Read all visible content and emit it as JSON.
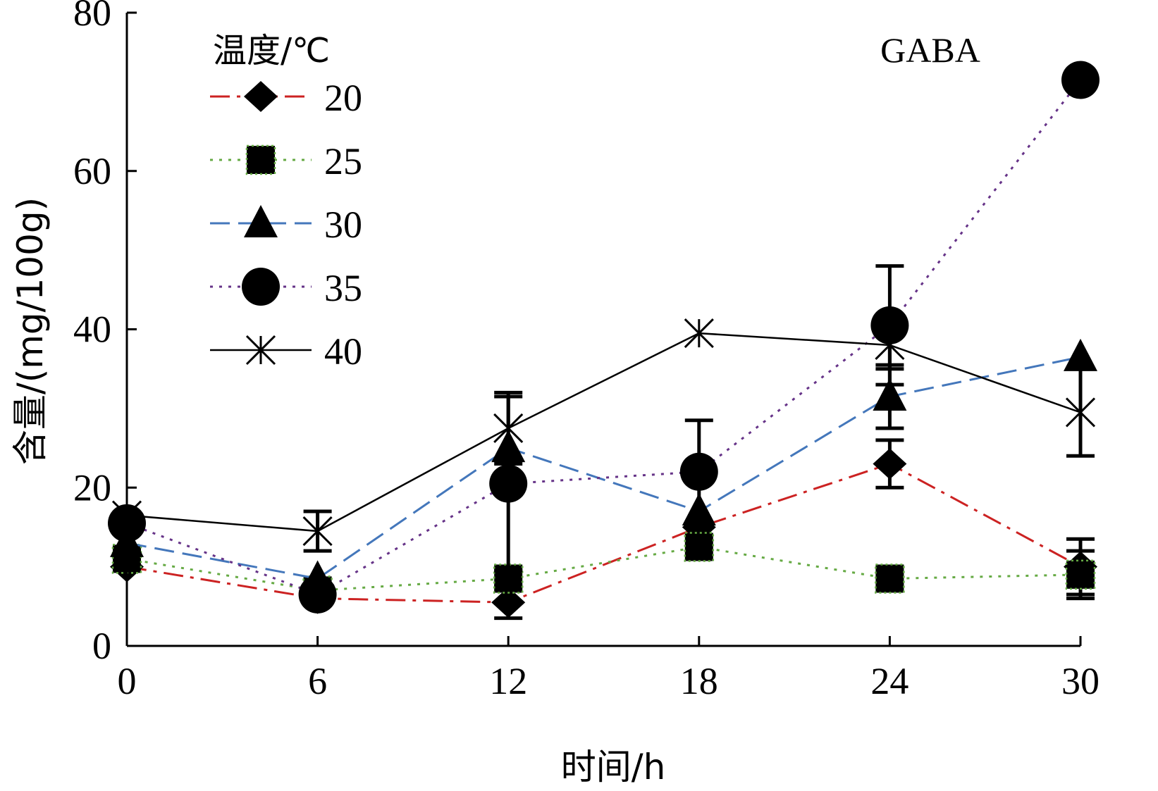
{
  "chart_data": {
    "type": "line",
    "title": "",
    "annotation": "GABA",
    "xlabel": "时间/h",
    "ylabel": "含量/(mg/100g)",
    "x": [
      0,
      6,
      12,
      18,
      24,
      30
    ],
    "x_tick_labels": [
      "0",
      "6",
      "12",
      "18",
      "24",
      "30"
    ],
    "xlim": [
      0,
      30
    ],
    "ylim": [
      0,
      80
    ],
    "y_ticks": [
      0,
      20,
      40,
      60,
      80
    ],
    "y_tick_labels": [
      "0",
      "20",
      "40",
      "60",
      "80"
    ],
    "grid": false,
    "legend": {
      "title": "温度/℃",
      "placement": "top-left"
    },
    "series": [
      {
        "name": "20",
        "marker": "diamond",
        "line": "dashdot",
        "color": "#cc2222",
        "values": [
          10,
          6,
          5.5,
          15,
          23,
          10
        ],
        "errors": [
          0,
          0,
          2,
          0,
          3,
          3.5
        ]
      },
      {
        "name": "25",
        "marker": "square",
        "line": "dotted",
        "color": "#66aa44",
        "values": [
          11,
          7,
          8.5,
          12.5,
          8.5,
          9
        ],
        "errors": [
          0,
          0,
          0,
          0,
          0,
          3
        ]
      },
      {
        "name": "30",
        "marker": "triangle",
        "line": "dashed",
        "color": "#4477bb",
        "values": [
          13,
          8.5,
          25,
          17,
          31.5,
          36.5
        ],
        "errors": [
          0,
          0,
          0,
          0,
          4,
          0
        ]
      },
      {
        "name": "35",
        "marker": "circle",
        "line": "dotted",
        "color": "#663388",
        "values": [
          15.5,
          6.5,
          20.5,
          22,
          40.5,
          71.5
        ],
        "errors": [
          0,
          0,
          11,
          6.5,
          7.5,
          0
        ]
      },
      {
        "name": "40",
        "marker": "asterisk",
        "line": "solid",
        "color": "#000000",
        "values": [
          16.5,
          14.5,
          27.5,
          39.5,
          38,
          29.5
        ],
        "errors": [
          0,
          2.5,
          4.5,
          0,
          3,
          5.5
        ]
      }
    ]
  }
}
